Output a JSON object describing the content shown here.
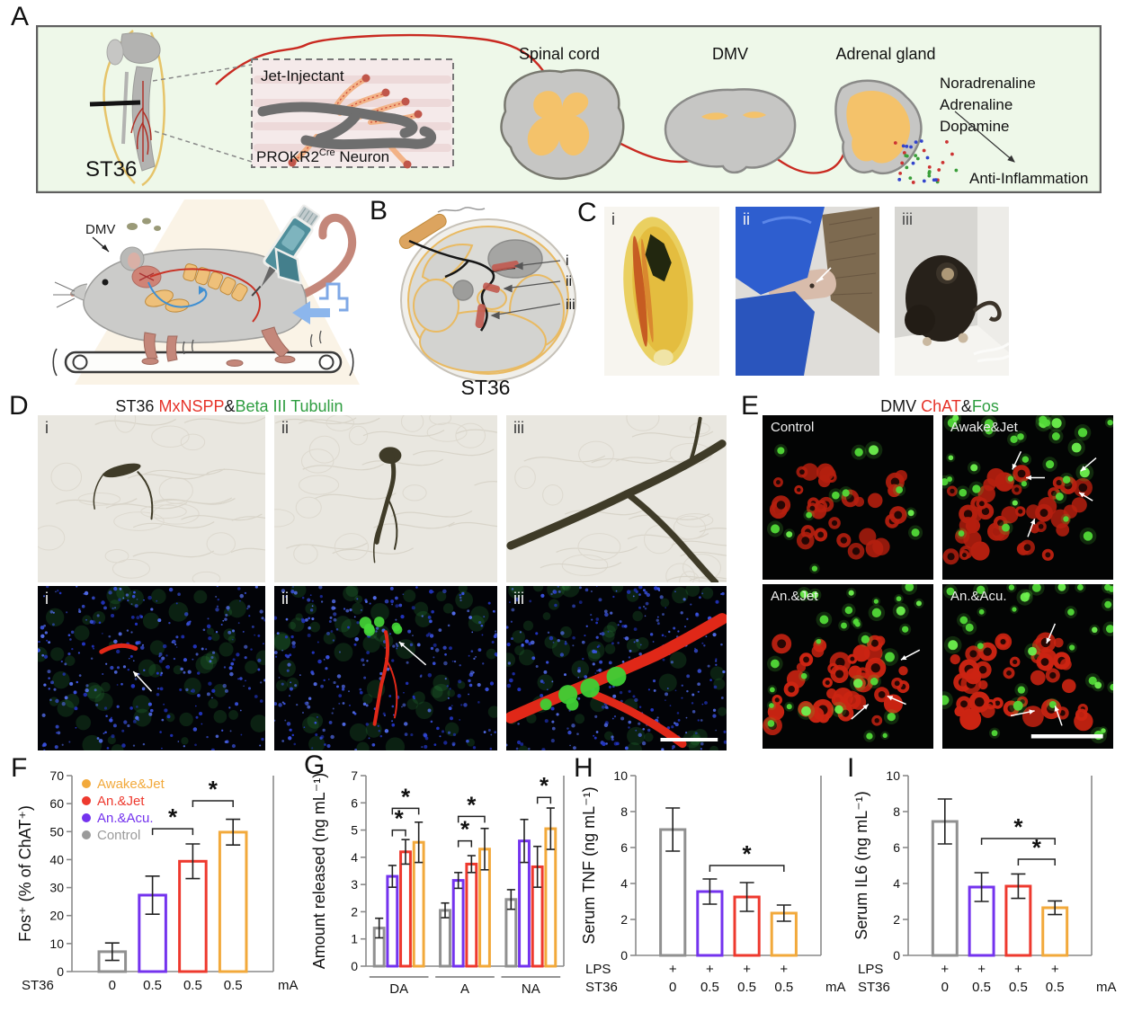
{
  "figure": {
    "panel_labels": {
      "A": "A",
      "B": "B",
      "C": "C",
      "D": "D",
      "E": "E",
      "F": "F",
      "G": "G",
      "H": "H",
      "I": "I"
    }
  },
  "panelA": {
    "st36": "ST36",
    "inset_top": "Jet-Injectant",
    "inset_prokr2": "PROKR2",
    "inset_cre": "Cre",
    "inset_neuron": " Neuron",
    "spinal_cord": "Spinal cord",
    "dmv": "DMV",
    "adrenal": "Adrenal gland",
    "hormones": [
      "Noradrenaline",
      "Adrenaline",
      "Dopamine"
    ],
    "anti_inflammation": "Anti-Inflammation"
  },
  "mouse": {
    "dmv": "DMV"
  },
  "panelB": {
    "markers": [
      "i",
      "ii",
      "iii"
    ],
    "caption": "ST36"
  },
  "panelC": {
    "tags": [
      "i",
      "ii",
      "iii"
    ]
  },
  "panelD": {
    "title_parts": [
      {
        "text": "ST36 ",
        "color": "#1a1a1a"
      },
      {
        "text": "MxNSPP",
        "color": "#e63329"
      },
      {
        "text": "&",
        "color": "#1a1a1a"
      },
      {
        "text": "Beta III Tubulin",
        "color": "#2f9e41"
      }
    ],
    "top_tags": [
      "i",
      "ii",
      "iii"
    ],
    "bottom_tags": [
      "i",
      "ii",
      "iii"
    ]
  },
  "panelE": {
    "title_parts": [
      {
        "text": "DMV ",
        "color": "#1a1a1a"
      },
      {
        "text": "ChAT",
        "color": "#e63329"
      },
      {
        "text": "&",
        "color": "#1a1a1a"
      },
      {
        "text": "Fos",
        "color": "#2f9e41"
      }
    ],
    "quadrants": [
      "Control",
      "Awake&Jet",
      "An.&Jet",
      "An.&Acu."
    ]
  },
  "colors": {
    "orange": "#F2A93B",
    "red": "#EE392E",
    "purple": "#7433EE",
    "gray": "#909090",
    "legend_gray": "#9a9a9a"
  },
  "chart_data": [
    {
      "id": "F",
      "type": "bar",
      "ylabel": "Fos⁺ (% of ChAT⁺)",
      "ylim": [
        0,
        70
      ],
      "yticks": [
        0,
        10,
        20,
        30,
        40,
        50,
        60,
        70
      ],
      "values": [
        7.1,
        27.3,
        39.4,
        49.8
      ],
      "errors": [
        3.1,
        6.8,
        6.2,
        4.6
      ],
      "bar_colors": [
        "gray",
        "purple",
        "red",
        "orange"
      ],
      "legend": [
        {
          "label": "Awake&Jet",
          "color": "orange"
        },
        {
          "label": "An.&Jet",
          "color": "red"
        },
        {
          "label": "An.&Acu.",
          "color": "purple"
        },
        {
          "label": "Control",
          "color": "legend_gray"
        }
      ],
      "significance": [
        {
          "from": 1,
          "to": 2,
          "y": 51,
          "label": "*"
        },
        {
          "from": 2,
          "to": 3,
          "y": 61,
          "label": "*"
        }
      ],
      "xaxis": {
        "rows": [
          {
            "label": "ST36",
            "values": [
              "0",
              "0.5",
              "0.5",
              "0.5"
            ]
          }
        ],
        "unit": "mA"
      }
    },
    {
      "id": "G",
      "type": "grouped-bar",
      "ylabel": "Amount released (ng mL⁻¹)",
      "ylim": [
        0,
        7
      ],
      "yticks": [
        0,
        1,
        2,
        3,
        4,
        5,
        6,
        7
      ],
      "groups": [
        "DA",
        "A",
        "NA"
      ],
      "series_colors": [
        "gray",
        "purple",
        "red",
        "orange"
      ],
      "values": [
        [
          1.4,
          3.3,
          4.2,
          4.55
        ],
        [
          2.05,
          3.15,
          3.75,
          4.3
        ],
        [
          2.45,
          4.6,
          3.65,
          5.05
        ]
      ],
      "errors": [
        [
          0.36,
          0.4,
          0.45,
          0.74
        ],
        [
          0.27,
          0.29,
          0.31,
          0.76
        ],
        [
          0.36,
          0.79,
          0.75,
          0.76
        ]
      ],
      "significance": [
        {
          "group": 0,
          "from": 1,
          "to": 2,
          "y": 5.0,
          "label": "*"
        },
        {
          "group": 0,
          "from": 1,
          "to": 3,
          "y": 5.8,
          "label": "*"
        },
        {
          "group": 1,
          "from": 1,
          "to": 2,
          "y": 4.6,
          "label": "*"
        },
        {
          "group": 1,
          "from": 1,
          "to": 3,
          "y": 5.5,
          "label": "*"
        },
        {
          "group": 2,
          "from": 2,
          "to": 3,
          "y": 6.2,
          "label": "*"
        }
      ]
    },
    {
      "id": "H",
      "type": "bar",
      "ylabel": "Serum TNF (ng mL⁻¹)",
      "ylim": [
        0,
        10
      ],
      "yticks": [
        0,
        2,
        4,
        6,
        8,
        10
      ],
      "values": [
        7.0,
        3.55,
        3.25,
        2.35
      ],
      "errors": [
        1.2,
        0.7,
        0.8,
        0.45
      ],
      "bar_colors": [
        "gray",
        "purple",
        "red",
        "orange"
      ],
      "significance": [
        {
          "from": 1,
          "to": 3,
          "y": 5.0,
          "label": "*"
        }
      ],
      "xaxis": {
        "rows": [
          {
            "label": "LPS",
            "values": [
              "+",
              "+",
              "+",
              "+"
            ]
          },
          {
            "label": "ST36",
            "values": [
              "0",
              "0.5",
              "0.5",
              "0.5"
            ]
          }
        ],
        "unit": "mA"
      }
    },
    {
      "id": "I",
      "type": "bar",
      "ylabel": "Serum IL6 (ng mL⁻¹)",
      "ylim": [
        0,
        10
      ],
      "yticks": [
        0,
        2,
        4,
        6,
        8,
        10
      ],
      "values": [
        7.45,
        3.8,
        3.85,
        2.65
      ],
      "errors": [
        1.25,
        0.8,
        0.68,
        0.38
      ],
      "bar_colors": [
        "gray",
        "purple",
        "red",
        "orange"
      ],
      "significance": [
        {
          "from": 1,
          "to": 3,
          "y": 6.5,
          "label": "*"
        },
        {
          "from": 2,
          "to": 3,
          "y": 5.35,
          "label": "*"
        }
      ],
      "xaxis": {
        "rows": [
          {
            "label": "LPS",
            "values": [
              "+",
              "+",
              "+",
              "+"
            ]
          },
          {
            "label": "ST36",
            "values": [
              "0",
              "0.5",
              "0.5",
              "0.5"
            ]
          }
        ],
        "unit": "mA"
      }
    }
  ]
}
